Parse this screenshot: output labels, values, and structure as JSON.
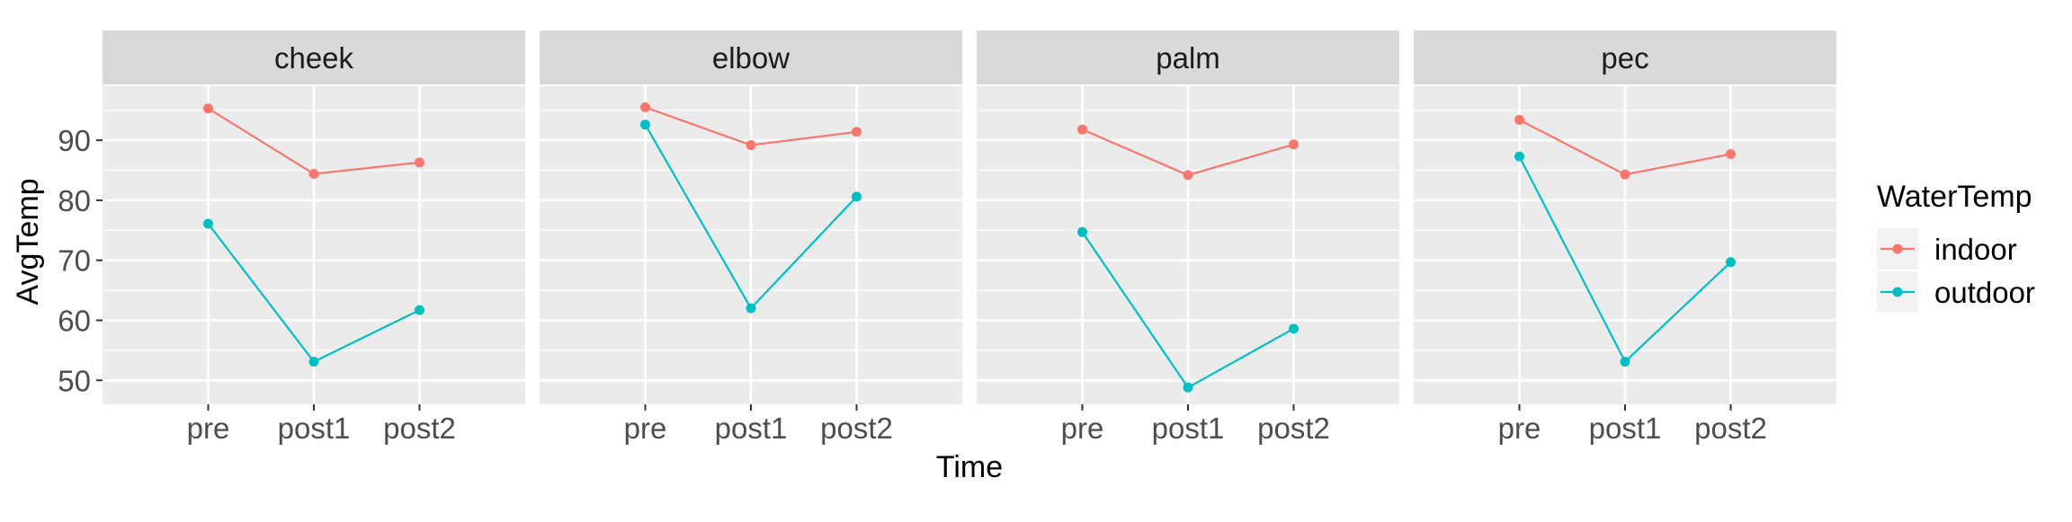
{
  "chart_data": {
    "type": "line",
    "facet_var": "site",
    "facets": [
      "cheek",
      "elbow",
      "palm",
      "pec"
    ],
    "categories": [
      "pre",
      "post1",
      "post2"
    ],
    "xlabel": "Time",
    "ylabel": "AvgTemp",
    "ylim": [
      46,
      99
    ],
    "yticks": [
      50,
      60,
      70,
      80,
      90
    ],
    "grid": true,
    "legend": {
      "title": "WaterTemp",
      "position": "right",
      "entries": [
        "indoor",
        "outdoor"
      ]
    },
    "series": [
      {
        "name": "indoor",
        "color": "#F8766D",
        "values": {
          "cheek": [
            95.3,
            84.4,
            86.3
          ],
          "elbow": [
            95.5,
            89.2,
            91.4
          ],
          "palm": [
            91.8,
            84.2,
            89.3
          ],
          "pec": [
            93.4,
            84.3,
            87.7
          ]
        }
      },
      {
        "name": "outdoor",
        "color": "#00BFC4",
        "values": {
          "cheek": [
            76.1,
            53.1,
            61.7
          ],
          "elbow": [
            92.6,
            62.0,
            80.6
          ],
          "palm": [
            74.7,
            48.8,
            58.6
          ],
          "pec": [
            87.3,
            53.1,
            69.7
          ]
        }
      }
    ]
  }
}
